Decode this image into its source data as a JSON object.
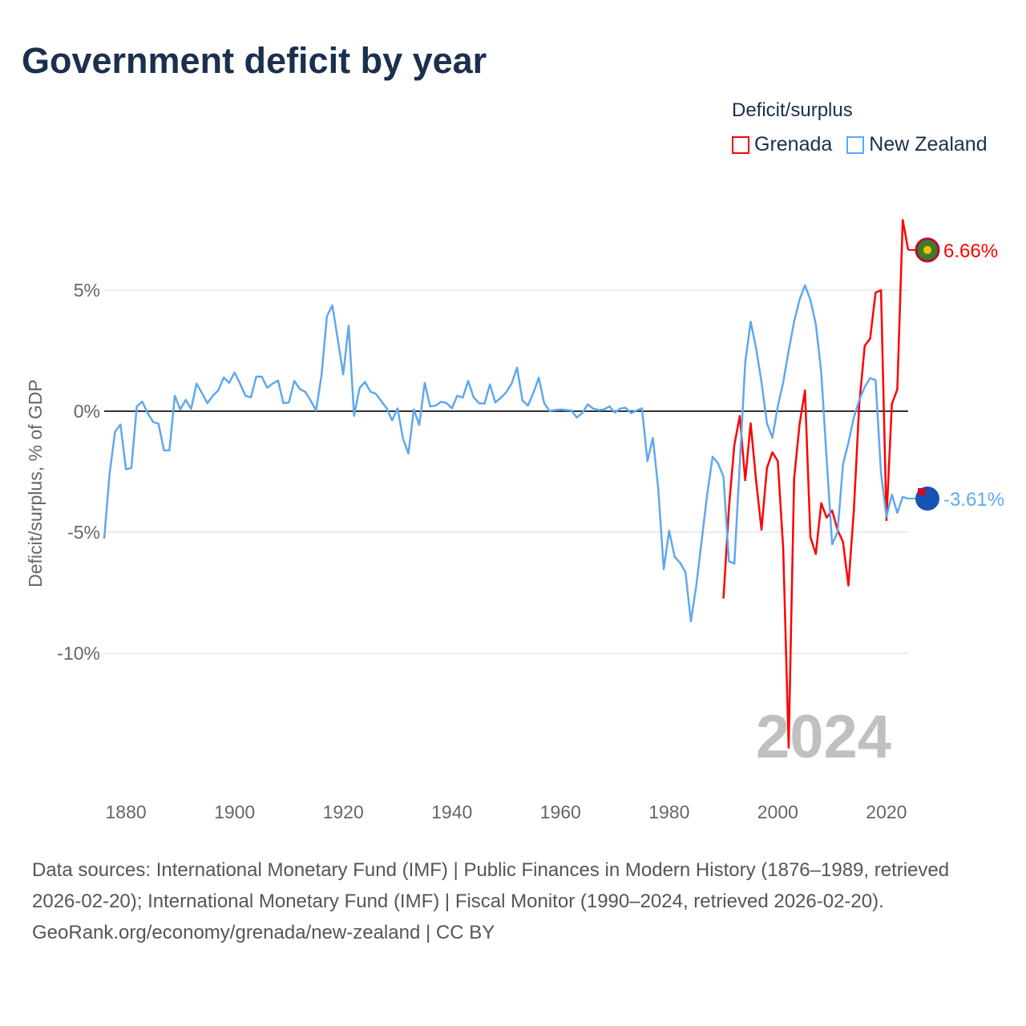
{
  "title": "Government deficit by year",
  "legend": {
    "title": "Deficit/surplus",
    "items": [
      {
        "name": "Grenada",
        "color": "#ff0000"
      },
      {
        "name": "New Zealand",
        "color": "#5fa8ee"
      }
    ]
  },
  "footer": {
    "sources": "Data sources: International Monetary Fund (IMF) | Public Finances in Modern History (1876–1989, retrieved 2026-02-20); International Monetary Fund (IMF) | Fiscal Monitor (1990–2024, retrieved 2026-02-20).",
    "attribution": "GeoRank.org/economy/grenada/new-zealand | CC BY"
  },
  "chart_data": {
    "type": "line",
    "title": "Government deficit by year",
    "xlabel": "",
    "ylabel": "Deficit/surplus, % of GDP",
    "xlim": [
      1876,
      2024
    ],
    "ylim": [
      -14,
      8
    ],
    "x_ticks": [
      {
        "v": 1880,
        "label": "1880"
      },
      {
        "v": 1900,
        "label": "1900"
      },
      {
        "v": 1920,
        "label": "1920"
      },
      {
        "v": 1940,
        "label": "1940"
      },
      {
        "v": 1960,
        "label": "1960"
      },
      {
        "v": 1980,
        "label": "1980"
      },
      {
        "v": 2000,
        "label": "2000"
      },
      {
        "v": 2020,
        "label": "2020"
      }
    ],
    "y_ticks": [
      {
        "v": 5,
        "label": "5%"
      },
      {
        "v": 0,
        "label": "0%"
      },
      {
        "v": -5,
        "label": "-5%"
      },
      {
        "v": -10,
        "label": "-10%"
      }
    ],
    "year_watermark": "2024",
    "series": [
      {
        "name": "Grenada",
        "color": "#ff0000",
        "start_year": 1990,
        "end_label": "6.66%",
        "values": [
          -7.74,
          -4.0,
          -1.4,
          -0.2,
          -2.85,
          -0.5,
          -2.85,
          -4.9,
          -2.35,
          -1.7,
          -2.06,
          -5.7,
          -13.9,
          -2.8,
          -0.55,
          0.86,
          -5.2,
          -5.9,
          -3.8,
          -4.4,
          -4.1,
          -4.9,
          -5.4,
          -7.2,
          -4.1,
          0.3,
          2.7,
          3.0,
          4.9,
          5.0,
          -4.5,
          0.3,
          0.9,
          7.9,
          6.66
        ]
      },
      {
        "name": "New Zealand",
        "color": "#5fa8ee",
        "start_year": 1876,
        "end_label": "-3.61%",
        "values": [
          -5.27,
          -2.56,
          -0.85,
          -0.55,
          -2.4,
          -2.34,
          0.2,
          0.4,
          -0.08,
          -0.44,
          -0.52,
          -1.62,
          -1.62,
          0.64,
          0.07,
          0.47,
          0.09,
          1.14,
          0.75,
          0.33,
          0.64,
          0.86,
          1.39,
          1.17,
          1.6,
          1.14,
          0.64,
          0.57,
          1.43,
          1.43,
          0.97,
          1.14,
          1.27,
          0.33,
          0.36,
          1.25,
          0.92,
          0.8,
          0.44,
          0.03,
          1.47,
          3.92,
          4.37,
          2.96,
          1.52,
          3.54,
          -0.19,
          0.95,
          1.21,
          0.81,
          0.72,
          0.42,
          0.12,
          -0.38,
          0.12,
          -1.13,
          -1.75,
          0.07,
          -0.57,
          1.17,
          0.2,
          0.23,
          0.39,
          0.34,
          0.12,
          0.64,
          0.56,
          1.25,
          0.58,
          0.33,
          0.31,
          1.11,
          0.36,
          0.55,
          0.78,
          1.14,
          1.8,
          0.44,
          0.23,
          0.75,
          1.38,
          0.33,
          0.01,
          0.05,
          0.07,
          0.05,
          0.03,
          -0.26,
          -0.08,
          0.28,
          0.11,
          0.05,
          0.07,
          0.2,
          -0.06,
          0.11,
          0.14,
          -0.08,
          0.03,
          0.12,
          -2.06,
          -1.1,
          -3.22,
          -6.53,
          -4.93,
          -6.01,
          -6.26,
          -6.64,
          -8.68,
          -7.19,
          -5.32,
          -3.44,
          -1.88,
          -2.15,
          -2.7,
          -6.2,
          -6.3,
          -2.2,
          2.0,
          3.7,
          2.6,
          1.2,
          -0.5,
          -1.1,
          0.2,
          1.2,
          2.5,
          3.7,
          4.6,
          5.2,
          4.6,
          3.6,
          1.6,
          -2.0,
          -5.5,
          -5.0,
          -2.2,
          -1.3,
          -0.26,
          0.46,
          1.0,
          1.37,
          1.28,
          -2.56,
          -4.36,
          -3.45,
          -4.2,
          -3.54,
          -3.61
        ]
      }
    ]
  }
}
